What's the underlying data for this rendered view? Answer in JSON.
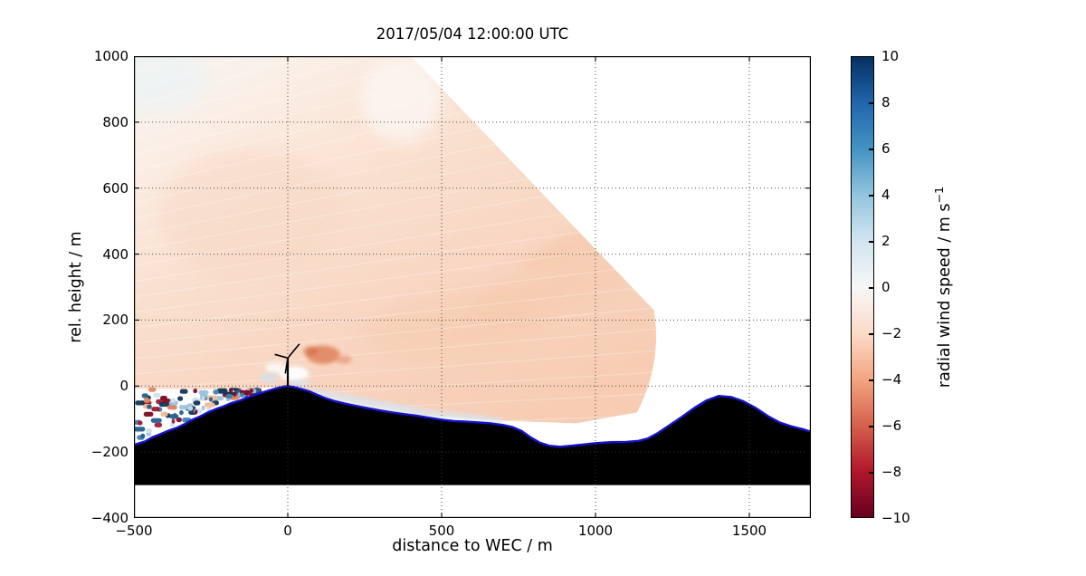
{
  "labels": {
    "title": "2017/05/04 12:00:00 UTC",
    "xlabel": "distance to WEC / m",
    "ylabel": "rel. height / m",
    "colorbar_label": "radial wind speed / m s",
    "colorbar_exp": "−1"
  },
  "axes": {
    "xlim": [
      -500,
      1700
    ],
    "ylim": [
      -400,
      1000
    ],
    "x_ticks": [
      -500,
      0,
      500,
      1000,
      1500
    ],
    "y_ticks": [
      1000,
      800,
      600,
      400,
      200,
      0,
      -200,
      -400
    ],
    "x_tick_labels": [
      "−500",
      "0",
      "500",
      "1000",
      "1500"
    ],
    "y_tick_labels": [
      "1000",
      "800",
      "600",
      "400",
      "200",
      "0",
      "−200",
      "−400"
    ]
  },
  "chart_data": {
    "type": "heatmap",
    "title": "2017/05/04 12:00:00 UTC",
    "xlabel": "distance to WEC / m",
    "ylabel": "rel. height / m",
    "xlim": [
      -500,
      1700
    ],
    "ylim": [
      -400,
      1000
    ],
    "grid": true,
    "colorbar": {
      "label": "radial wind speed / m s⁻¹",
      "range": [
        -10,
        10
      ],
      "ticks": [
        10,
        8,
        6,
        4,
        2,
        0,
        -2,
        -4,
        -6,
        -8,
        -10
      ],
      "tick_labels": [
        "10",
        "8",
        "6",
        "4",
        "2",
        "0",
        "−2",
        "−4",
        "−6",
        "−8",
        "−10"
      ],
      "colormap": "RdBu",
      "colors_bottom_to_top": [
        "#67001f",
        "#b2182b",
        "#d6604d",
        "#f4a582",
        "#fddbc7",
        "#f7f7f7",
        "#d1e5f0",
        "#92c5de",
        "#4393c3",
        "#2166ac",
        "#053061"
      ]
    },
    "scan": {
      "description": "Lidar RHI scan sector filled with weak negative radial wind speeds (pale red, about -1 to -2 m/s), radiating from a lidar on the lower left; white outside the sector means no data",
      "mean_value_ms": -1.5,
      "polygon": [
        [
          -500,
          1000
        ],
        [
          400,
          1000
        ],
        [
          1190,
          230
        ],
        [
          1135,
          -80
        ],
        [
          938,
          -113
        ],
        [
          700,
          -105
        ],
        [
          388,
          -86
        ],
        [
          300,
          -76
        ],
        [
          200,
          -58
        ],
        [
          100,
          -30
        ],
        [
          0,
          0
        ],
        [
          -150,
          -10
        ],
        [
          -500,
          -8
        ]
      ],
      "arc_control": [
        1218,
        70
      ],
      "wake_behind_turbine": {
        "center": [
          115,
          95
        ],
        "approx_value_ms": -3.5
      },
      "speedup_on_lee_slope": {
        "from": [
          70,
          -5
        ],
        "to": [
          700,
          -115
        ],
        "approx_value_ms": 1.0
      }
    },
    "terrain": {
      "base_height": -300,
      "profile": [
        [
          -500,
          -178
        ],
        [
          -465,
          -168
        ],
        [
          -440,
          -155
        ],
        [
          -415,
          -146
        ],
        [
          -390,
          -136
        ],
        [
          -360,
          -126
        ],
        [
          -335,
          -115
        ],
        [
          -310,
          -102
        ],
        [
          -285,
          -92
        ],
        [
          -260,
          -80
        ],
        [
          -235,
          -70
        ],
        [
          -210,
          -62
        ],
        [
          -185,
          -52
        ],
        [
          -160,
          -45
        ],
        [
          -135,
          -36
        ],
        [
          -110,
          -28
        ],
        [
          -85,
          -20
        ],
        [
          -60,
          -13
        ],
        [
          -35,
          -6
        ],
        [
          -15,
          -2
        ],
        [
          0,
          0
        ],
        [
          20,
          -3
        ],
        [
          45,
          -9
        ],
        [
          70,
          -16
        ],
        [
          95,
          -26
        ],
        [
          120,
          -36
        ],
        [
          150,
          -45
        ],
        [
          185,
          -53
        ],
        [
          220,
          -60
        ],
        [
          260,
          -67
        ],
        [
          300,
          -74
        ],
        [
          340,
          -80
        ],
        [
          380,
          -85
        ],
        [
          420,
          -90
        ],
        [
          460,
          -96
        ],
        [
          500,
          -102
        ],
        [
          540,
          -106
        ],
        [
          580,
          -108
        ],
        [
          620,
          -110
        ],
        [
          660,
          -113
        ],
        [
          700,
          -118
        ],
        [
          730,
          -124
        ],
        [
          760,
          -136
        ],
        [
          790,
          -156
        ],
        [
          820,
          -172
        ],
        [
          850,
          -181
        ],
        [
          885,
          -184
        ],
        [
          920,
          -181
        ],
        [
          960,
          -177
        ],
        [
          1000,
          -173
        ],
        [
          1050,
          -170
        ],
        [
          1100,
          -169
        ],
        [
          1140,
          -166
        ],
        [
          1170,
          -159
        ],
        [
          1200,
          -144
        ],
        [
          1240,
          -119
        ],
        [
          1280,
          -94
        ],
        [
          1320,
          -67
        ],
        [
          1360,
          -44
        ],
        [
          1400,
          -30
        ],
        [
          1440,
          -33
        ],
        [
          1480,
          -46
        ],
        [
          1520,
          -66
        ],
        [
          1560,
          -91
        ],
        [
          1600,
          -111
        ],
        [
          1640,
          -123
        ],
        [
          1675,
          -131
        ],
        [
          1700,
          -138
        ]
      ],
      "surface_line_color": "#1414cc",
      "fill_color": "#000000"
    },
    "turbine": {
      "x": 0,
      "base_height": 0,
      "hub_height": 85,
      "blade_tips": [
        [
          38,
          128
        ],
        [
          -42,
          96
        ],
        [
          -8,
          38
        ]
      ]
    },
    "noise_region": {
      "x_range": [
        -500,
        -45
      ],
      "y_top": -10,
      "description": "Speckled invalid lidar returns (random dark red / blue / salmon dots) between 0 m height and the terrain on the left slope",
      "dot_count": 110,
      "palette": [
        [
          "#7a0c23",
          0.18
        ],
        [
          "#9f1b30",
          0.12
        ],
        [
          "#12355b",
          0.15
        ],
        [
          "#265d8d",
          0.13
        ],
        [
          "#3f7fb0",
          0.08
        ],
        [
          "#9cc4dd",
          0.12
        ],
        [
          "#cfe1ee",
          0.08
        ],
        [
          "#e5875f",
          0.08
        ],
        [
          "#f2b993",
          0.06
        ]
      ]
    }
  }
}
